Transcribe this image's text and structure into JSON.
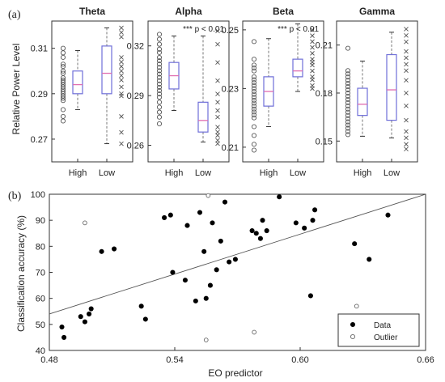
{
  "chart_data": [
    {
      "panel_label": "(a)",
      "type": "box",
      "ylabel": "Relative Power Level",
      "categories": [
        "High",
        "Low"
      ],
      "colors": {
        "box": "#6f6fd8",
        "median": "#e06db0",
        "whisker": "#777777",
        "point": "#555555"
      },
      "panels": [
        {
          "title": "Theta",
          "annotation": "",
          "ylim": [
            0.26,
            0.322
          ],
          "yticks": [
            "0.27",
            "0.29",
            "0.31"
          ],
          "ytick_values": [
            0.27,
            0.29,
            0.31
          ],
          "boxes": [
            {
              "category": "High",
              "min": 0.283,
              "q1": 0.29,
              "median": 0.294,
              "q3": 0.3,
              "max": 0.309
            },
            {
              "category": "Low",
              "min": 0.268,
              "q1": 0.29,
              "median": 0.299,
              "q3": 0.311,
              "max": 0.319
            }
          ],
          "high_points": [
            0.31,
            0.308,
            0.306,
            0.303,
            0.302,
            0.3,
            0.299,
            0.297,
            0.296,
            0.295,
            0.294,
            0.293,
            0.292,
            0.291,
            0.29,
            0.289,
            0.288,
            0.287,
            0.283,
            0.28,
            0.278
          ],
          "low_points": [
            0.319,
            0.317,
            0.315,
            0.306,
            0.304,
            0.302,
            0.3,
            0.298,
            0.296,
            0.293,
            0.29,
            0.289,
            0.28,
            0.273,
            0.268
          ]
        },
        {
          "title": "Alpha",
          "annotation": "*** p < 0.01",
          "ylim": [
            0.25,
            0.335
          ],
          "yticks": [
            "0.26",
            "0.29",
            "0.32"
          ],
          "ytick_values": [
            0.26,
            0.29,
            0.32
          ],
          "boxes": [
            {
              "category": "High",
              "min": 0.281,
              "q1": 0.294,
              "median": 0.302,
              "q3": 0.31,
              "max": 0.326
            },
            {
              "category": "Low",
              "min": 0.262,
              "q1": 0.268,
              "median": 0.275,
              "q3": 0.286,
              "max": 0.326
            }
          ],
          "high_points": [
            0.327,
            0.324,
            0.321,
            0.318,
            0.316,
            0.313,
            0.311,
            0.309,
            0.307,
            0.305,
            0.303,
            0.301,
            0.299,
            0.297,
            0.295,
            0.293,
            0.291,
            0.289,
            0.286,
            0.283,
            0.28,
            0.277,
            0.273
          ],
          "low_points": [
            0.329,
            0.321,
            0.31,
            0.299,
            0.291,
            0.286,
            0.281,
            0.277,
            0.271,
            0.268,
            0.266,
            0.263,
            0.261
          ]
        },
        {
          "title": "Beta",
          "annotation": "*** p < 0.01",
          "ylim": [
            0.205,
            0.253
          ],
          "yticks": [
            "0.21",
            "0.23",
            "0.25"
          ],
          "ytick_values": [
            0.21,
            0.23,
            0.25
          ],
          "boxes": [
            {
              "category": "High",
              "min": 0.217,
              "q1": 0.224,
              "median": 0.229,
              "q3": 0.234,
              "max": 0.247
            },
            {
              "category": "Low",
              "min": 0.229,
              "q1": 0.234,
              "median": 0.236,
              "q3": 0.24,
              "max": 0.252
            }
          ],
          "high_points": [
            0.246,
            0.24,
            0.238,
            0.237,
            0.236,
            0.234,
            0.233,
            0.232,
            0.231,
            0.23,
            0.229,
            0.228,
            0.227,
            0.226,
            0.225,
            0.224,
            0.223,
            0.222,
            0.221,
            0.22,
            0.217,
            0.214,
            0.211,
            0.209
          ],
          "low_points": [
            0.25,
            0.248,
            0.246,
            0.244,
            0.242,
            0.24,
            0.239,
            0.238,
            0.236,
            0.234,
            0.233,
            0.231,
            0.23
          ]
        },
        {
          "title": "Gamma",
          "annotation": "",
          "ylim": [
            0.137,
            0.225
          ],
          "yticks": [
            "0.15",
            "0.18",
            "0.21"
          ],
          "ytick_values": [
            0.15,
            0.18,
            0.21
          ],
          "boxes": [
            {
              "category": "High",
              "min": 0.153,
              "q1": 0.166,
              "median": 0.173,
              "q3": 0.183,
              "max": 0.2
            },
            {
              "category": "Low",
              "min": 0.152,
              "q1": 0.163,
              "median": 0.182,
              "q3": 0.204,
              "max": 0.218
            }
          ],
          "high_points": [
            0.208,
            0.194,
            0.192,
            0.19,
            0.188,
            0.186,
            0.184,
            0.182,
            0.18,
            0.178,
            0.176,
            0.174,
            0.172,
            0.17,
            0.168,
            0.166,
            0.164,
            0.162,
            0.16,
            0.158,
            0.156,
            0.154
          ],
          "low_points": [
            0.22,
            0.216,
            0.212,
            0.206,
            0.202,
            0.198,
            0.194,
            0.188,
            0.18,
            0.172,
            0.163,
            0.156,
            0.152,
            0.148,
            0.145
          ]
        }
      ]
    },
    {
      "panel_label": "(b)",
      "type": "scatter",
      "xlabel": "EO predictor",
      "ylabel": "Classification accuracy (%)",
      "xlim": [
        0.48,
        0.66
      ],
      "ylim": [
        40,
        100
      ],
      "xticks": [
        "0.48",
        "0.54",
        "0.60",
        "0.66"
      ],
      "xtick_values": [
        0.48,
        0.54,
        0.6,
        0.66
      ],
      "yticks": [
        "40",
        "50",
        "60",
        "70",
        "80",
        "90",
        "100"
      ],
      "ytick_values": [
        40,
        50,
        60,
        70,
        80,
        90,
        100
      ],
      "trendline": {
        "x": [
          0.48,
          0.66
        ],
        "y": [
          54,
          100
        ]
      },
      "legend_position": "bottom-right",
      "series": [
        {
          "name": "Data",
          "marker": "filled-circle",
          "x": [
            0.486,
            0.487,
            0.495,
            0.497,
            0.499,
            0.5,
            0.505,
            0.511,
            0.524,
            0.526,
            0.535,
            0.538,
            0.539,
            0.545,
            0.546,
            0.55,
            0.552,
            0.554,
            0.555,
            0.557,
            0.558,
            0.56,
            0.562,
            0.564,
            0.566,
            0.569,
            0.577,
            0.579,
            0.581,
            0.582,
            0.584,
            0.59,
            0.598,
            0.602,
            0.605,
            0.606,
            0.607,
            0.626,
            0.633,
            0.642
          ],
          "y": [
            49,
            45,
            53,
            51,
            54,
            56,
            78,
            79,
            57,
            52,
            91,
            92,
            70,
            67,
            88,
            59,
            93,
            78,
            60,
            65,
            89,
            71,
            82,
            97,
            74,
            75,
            86,
            85,
            83,
            90,
            86,
            99,
            89,
            87,
            61,
            90,
            94,
            81,
            75,
            92
          ]
        },
        {
          "name": "Outlier",
          "marker": "open-circle",
          "x": [
            0.497,
            0.556,
            0.555,
            0.578,
            0.627
          ],
          "y": [
            89,
            99.5,
            44,
            47,
            57
          ]
        }
      ]
    }
  ]
}
